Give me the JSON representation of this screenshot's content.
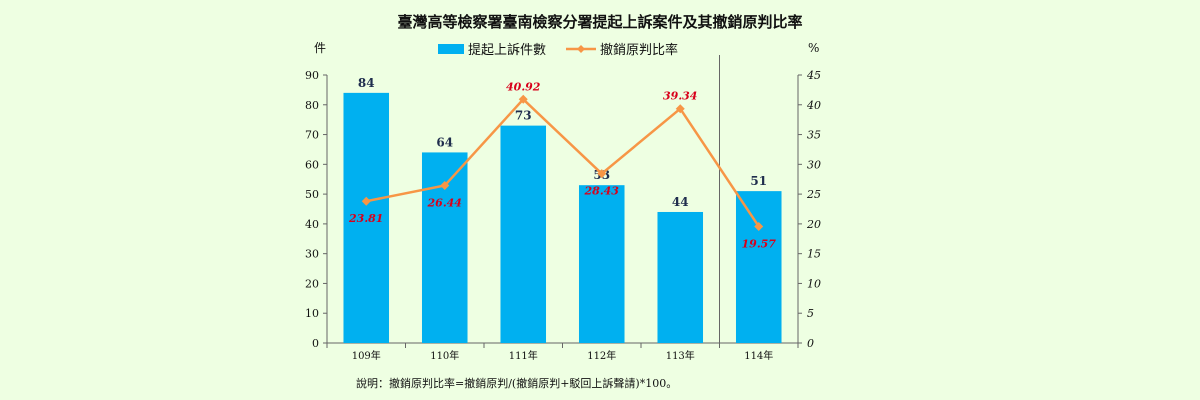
{
  "chart_data": {
    "type": "bar",
    "title": "臺灣高等檢察署臺南檢察分署提起上訴案件及其撤銷原判比率",
    "categories": [
      "109年",
      "110年",
      "111年",
      "112年",
      "113年",
      "114年"
    ],
    "series": [
      {
        "name": "提起上訴件數",
        "kind": "bar",
        "axis": "left",
        "values": [
          84,
          64,
          73,
          53,
          44,
          51
        ],
        "color": "#00b0f0"
      },
      {
        "name": "撤銷原判比率",
        "kind": "line",
        "axis": "right",
        "values": [
          23.81,
          26.44,
          40.92,
          28.43,
          39.34,
          19.57
        ],
        "color": "#f79646",
        "marker": "diamond"
      }
    ],
    "ylabel_left": "件",
    "ylabel_right": "%",
    "ylim_left": [
      0,
      90
    ],
    "yticks_left": [
      0,
      10,
      20,
      30,
      40,
      50,
      60,
      70,
      80,
      90
    ],
    "ylim_right": [
      0,
      45
    ],
    "yticks_right": [
      0,
      5,
      10,
      15,
      20,
      25,
      30,
      35,
      40,
      45
    ],
    "grid": false,
    "legend": "top-center",
    "divider_after_category": "113年",
    "note": "說明：撤銷原判比率=撤銷原判/(撤銷原判+駁回上訴聲請)*100。"
  }
}
